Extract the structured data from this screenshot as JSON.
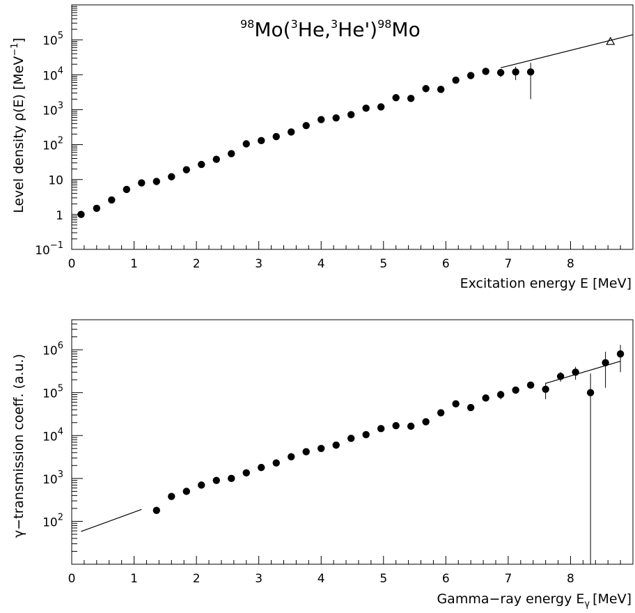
{
  "figure_title": {
    "nucleus_mass": "98",
    "nucleus_symbol": "Mo",
    "open": "(",
    "projectile_mass": "3",
    "projectile_symbol": "He,",
    "ejectile_mass": "3",
    "ejectile_symbol": "He')",
    "residual_mass": "98",
    "residual_symbol": "Mo"
  },
  "chart_data": [
    {
      "type": "scatter",
      "ylabel": "Level density ρ(E) [MeV",
      "ylabel_exp": "−1",
      "ylabel_close": "]",
      "xlabel": "Excitation energy E [MeV]",
      "xlim": [
        0,
        9
      ],
      "ylim_log10": [
        -1,
        6
      ],
      "yscale": "log",
      "x_ticks": [
        "0",
        "1",
        "2",
        "3",
        "4",
        "5",
        "6",
        "7",
        "8"
      ],
      "y_ticks": [
        {
          "value": 0.1,
          "base": "10",
          "exp": "−1"
        },
        {
          "value": 1,
          "base": "1",
          "exp": ""
        },
        {
          "value": 10,
          "base": "10",
          "exp": ""
        },
        {
          "value": 100,
          "base": "10",
          "exp": "2"
        },
        {
          "value": 1000,
          "base": "10",
          "exp": "3"
        },
        {
          "value": 10000,
          "base": "10",
          "exp": "4"
        },
        {
          "value": 100000,
          "base": "10",
          "exp": "5"
        }
      ],
      "series": [
        {
          "kind": "points",
          "x": [
            0.15,
            0.4,
            0.64,
            0.88,
            1.12,
            1.36,
            1.6,
            1.84,
            2.08,
            2.32,
            2.56,
            2.8,
            3.04,
            3.28,
            3.52,
            3.76,
            4.0,
            4.24,
            4.48,
            4.72,
            4.96,
            5.2,
            5.44,
            5.68,
            5.92,
            6.16,
            6.4,
            6.64,
            6.88,
            7.12,
            7.36
          ],
          "y": [
            1.0,
            1.5,
            2.6,
            5.2,
            8.0,
            8.8,
            12,
            19,
            27,
            38,
            55,
            105,
            130,
            170,
            230,
            350,
            520,
            580,
            720,
            1100,
            1200,
            2200,
            2100,
            4000,
            3800,
            7000,
            9500,
            12500,
            11500,
            12000,
            12000
          ],
          "y_err_low": [
            0.1,
            0.15,
            0.25,
            0.5,
            0.8,
            0.9,
            1.2,
            1.9,
            2.7,
            3.8,
            5,
            9,
            12,
            15,
            20,
            30,
            40,
            50,
            60,
            90,
            100,
            200,
            200,
            350,
            350,
            700,
            1200,
            1500,
            3000,
            5000,
            10000
          ],
          "y_err_high": [
            0.1,
            0.15,
            0.25,
            0.5,
            0.8,
            0.9,
            1.2,
            1.9,
            2.7,
            3.8,
            5,
            9,
            12,
            15,
            20,
            30,
            40,
            50,
            60,
            90,
            100,
            200,
            200,
            350,
            350,
            700,
            1200,
            1500,
            3000,
            5000,
            10000
          ]
        },
        {
          "kind": "line",
          "x": [
            6.88,
            9.0
          ],
          "y": [
            15800,
            140000
          ]
        },
        {
          "kind": "triangle",
          "x": [
            8.64
          ],
          "y": [
            90000
          ]
        }
      ]
    },
    {
      "type": "scatter",
      "ylabel": "γ−transmission coeff. (a.u.)",
      "xlabel": "Gamma−ray energy E",
      "xlabel_sub": "γ",
      "xlabel_unit": "[MeV]",
      "xlim": [
        0,
        9
      ],
      "ylim_log10": [
        1,
        6.7
      ],
      "yscale": "log",
      "x_ticks": [
        "0",
        "1",
        "2",
        "3",
        "4",
        "5",
        "6",
        "7",
        "8"
      ],
      "y_ticks": [
        {
          "value": 100,
          "base": "10",
          "exp": "2"
        },
        {
          "value": 1000,
          "base": "10",
          "exp": "3"
        },
        {
          "value": 10000,
          "base": "10",
          "exp": "4"
        },
        {
          "value": 100000,
          "base": "10",
          "exp": "5"
        },
        {
          "value": 1000000,
          "base": "10",
          "exp": "6"
        }
      ],
      "series": [
        {
          "kind": "points",
          "x": [
            1.36,
            1.6,
            1.84,
            2.08,
            2.32,
            2.56,
            2.8,
            3.04,
            3.28,
            3.52,
            3.76,
            4.0,
            4.24,
            4.48,
            4.72,
            4.96,
            5.2,
            5.44,
            5.68,
            5.92,
            6.16,
            6.4,
            6.64,
            6.88,
            7.12,
            7.36,
            7.6,
            7.84,
            8.08,
            8.32,
            8.56,
            8.8
          ],
          "y": [
            180,
            380,
            500,
            700,
            900,
            1000,
            1350,
            1800,
            2300,
            3200,
            4200,
            5000,
            6000,
            8600,
            10500,
            14500,
            17000,
            16500,
            21000,
            34000,
            55000,
            45000,
            75000,
            90000,
            115000,
            150000,
            120000,
            240000,
            300000,
            100000,
            500000,
            800000
          ],
          "y_err_low": [
            10,
            20,
            30,
            40,
            50,
            60,
            80,
            100,
            130,
            180,
            230,
            280,
            330,
            450,
            600,
            800,
            1000,
            1000,
            1400,
            2200,
            4000,
            7000,
            9000,
            20000,
            15000,
            20000,
            50000,
            60000,
            100000,
            99990,
            370000,
            500000
          ],
          "y_err_high": [
            10,
            20,
            30,
            40,
            50,
            60,
            80,
            100,
            130,
            180,
            230,
            280,
            330,
            450,
            600,
            800,
            1000,
            1000,
            1400,
            2200,
            4000,
            7000,
            9000,
            20000,
            15000,
            20000,
            50000,
            60000,
            100000,
            180000,
            400000,
            500000
          ]
        },
        {
          "kind": "line",
          "x": [
            0.15,
            1.12
          ],
          "y": [
            58,
            190
          ]
        },
        {
          "kind": "line",
          "x": [
            7.6,
            8.8
          ],
          "y": [
            165000,
            540000
          ]
        }
      ]
    }
  ]
}
